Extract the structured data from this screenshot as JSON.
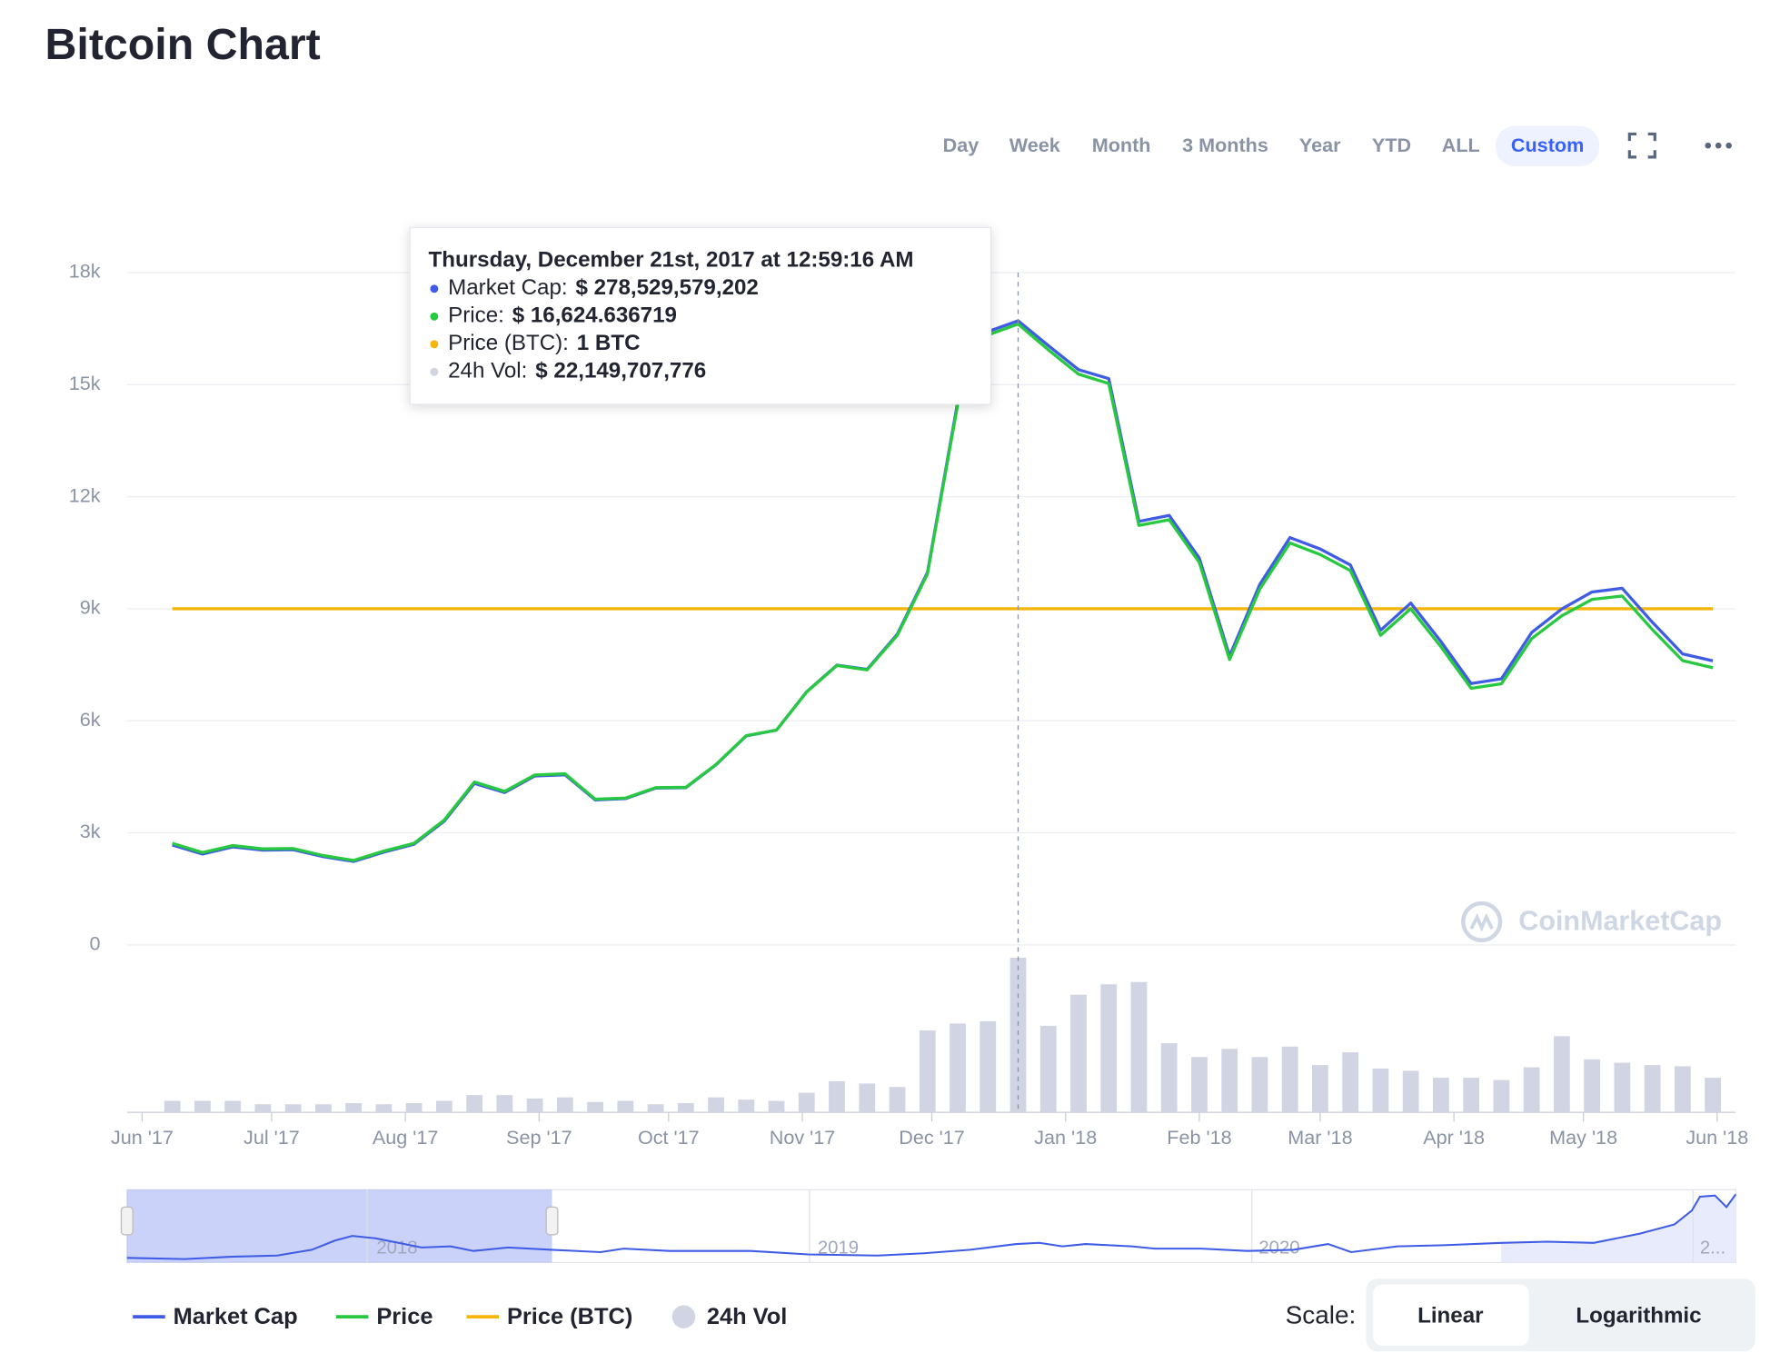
{
  "title": "Bitcoin Chart",
  "range_buttons": [
    "Day",
    "Week",
    "Month",
    "3 Months",
    "Year",
    "YTD",
    "ALL",
    "Custom"
  ],
  "active_range": "Custom",
  "tooltip": {
    "date": "Thursday, December 21st, 2017 at 12:59:16 AM",
    "items": [
      {
        "label": "Market Cap:",
        "value": "$ 278,529,579,202"
      },
      {
        "label": "Price:",
        "value": "$ 16,624.636719"
      },
      {
        "label": "Price (BTC):",
        "value": "1 BTC"
      },
      {
        "label": "24h Vol:",
        "value": "$ 22,149,707,776"
      }
    ]
  },
  "watermark": "CoinMarketCap",
  "navigator": {
    "labels": [
      "2018",
      "2019",
      "2020",
      "2..."
    ]
  },
  "scale": {
    "label": "Scale:",
    "options": [
      "Linear",
      "Logarithmic"
    ],
    "active": "Linear"
  },
  "chart_data": {
    "type": "line",
    "x": [
      7,
      14,
      21,
      28,
      35,
      42,
      49,
      56,
      63,
      70,
      77,
      84,
      91,
      98,
      105,
      112,
      119,
      126,
      133,
      140,
      147,
      154,
      161,
      168,
      175,
      182,
      189,
      196,
      203,
      210,
      217,
      224,
      231,
      238,
      245,
      252,
      259,
      266,
      273,
      280,
      287,
      294,
      301,
      308,
      315,
      322,
      329,
      336,
      343,
      350,
      357,
      364
    ],
    "xlim": [
      -3.5,
      369.3
    ],
    "xticks": [
      {
        "value": 0,
        "label": "Jun '17"
      },
      {
        "value": 30,
        "label": "Jul '17"
      },
      {
        "value": 61,
        "label": "Aug '17"
      },
      {
        "value": 92,
        "label": "Sep '17"
      },
      {
        "value": 122,
        "label": "Oct '17"
      },
      {
        "value": 153,
        "label": "Nov '17"
      },
      {
        "value": 183,
        "label": "Dec '17"
      },
      {
        "value": 214,
        "label": "Jan '18"
      },
      {
        "value": 245,
        "label": "Feb '18"
      },
      {
        "value": 273,
        "label": "Mar '18"
      },
      {
        "value": 304,
        "label": "Apr '18"
      },
      {
        "value": 334,
        "label": "May '18"
      },
      {
        "value": 365,
        "label": "Jun '18"
      }
    ],
    "ylim": [
      0,
      18000
    ],
    "yticks": [
      0,
      {
        "value": 3000,
        "label": "3k"
      },
      {
        "value": 6000,
        "label": "6k"
      },
      {
        "value": 9000,
        "label": "9k"
      },
      {
        "value": 12000,
        "label": "12k"
      },
      {
        "value": 15000,
        "label": "15k"
      },
      {
        "value": 18000,
        "label": "18k"
      }
    ],
    "y2lim": [
      0,
      300000000000
    ],
    "y3lim": [
      0,
      2
    ],
    "y4lim": [
      0,
      24000000000
    ],
    "grid": true,
    "legend": "bottom-left",
    "series": [
      {
        "name": "Market Cap",
        "color": "#3f5ce6",
        "axis": "y2",
        "values": [
          44610000000,
          40540000000,
          43700000000,
          42250000000,
          42450000000,
          39360000000,
          37240000000,
          41400000000,
          44900000000,
          55180000000,
          72080000000,
          68000000000,
          75350000000,
          75900000000,
          64690000000,
          65240000000,
          69940000000,
          70160000000,
          80370000000,
          93260000000,
          95830000000,
          112920000000,
          124860000000,
          122960000000,
          138600000000,
          166160000000,
          242310000000,
          273670000000,
          278529579202,
          267400000000,
          256690000000,
          252680000000,
          188960000000,
          191630000000,
          172560000000,
          128860000000,
          160860000000,
          181760000000,
          176660000000,
          169530000000,
          140370000000,
          152510000000,
          135330000000,
          116600000000,
          118730000000,
          139390000000,
          149880000000,
          157480000000,
          159140000000,
          143920000000,
          129860000000,
          126730000000
        ]
      },
      {
        "name": "Price",
        "color": "#28c940",
        "values": [
          2720,
          2470,
          2660,
          2570,
          2580,
          2390,
          2260,
          2510,
          2720,
          3340,
          4360,
          4110,
          4550,
          4580,
          3900,
          3930,
          4210,
          4220,
          4830,
          5600,
          5750,
          6770,
          7480,
          7360,
          8290,
          9930,
          14470,
          16330,
          16624.636719,
          15930,
          15280,
          15030,
          11230,
          11380,
          10240,
          7640,
          9530,
          10760,
          10450,
          10020,
          8290,
          9000,
          7980,
          6870,
          6990,
          8200,
          8810,
          9250,
          9340,
          8440,
          7610,
          7420
        ]
      },
      {
        "name": "Price (BTC)",
        "color": "#f5b50a",
        "axis": "y3",
        "values": [
          1,
          1,
          1,
          1,
          1,
          1,
          1,
          1,
          1,
          1,
          1,
          1,
          1,
          1,
          1,
          1,
          1,
          1,
          1,
          1,
          1,
          1,
          1,
          1,
          1,
          1,
          1,
          1,
          1,
          1,
          1,
          1,
          1,
          1,
          1,
          1,
          1,
          1,
          1,
          1,
          1,
          1,
          1,
          1,
          1,
          1,
          1,
          1,
          1,
          1,
          1,
          1
        ]
      },
      {
        "name": "24h Vol",
        "color": "#d1d5e3",
        "type": "bar",
        "axis": "y4",
        "values": [
          1650000000,
          1650000000,
          1650000000,
          1160000000,
          1160000000,
          1160000000,
          1320000000,
          1160000000,
          1320000000,
          1650000000,
          2480000000,
          2480000000,
          1980000000,
          2150000000,
          1490000000,
          1650000000,
          1160000000,
          1320000000,
          2150000000,
          1820000000,
          1650000000,
          2810000000,
          4460000000,
          4130000000,
          3640000000,
          11740000000,
          12730000000,
          13060000000,
          22149707776,
          12400000000,
          16860000000,
          18350000000,
          18680000000,
          9920000000,
          7930000000,
          9090000000,
          7930000000,
          9420000000,
          6780000000,
          8600000000,
          6280000000,
          5950000000,
          4960000000,
          4960000000,
          4630000000,
          6450000000,
          10910000000,
          7600000000,
          7110000000,
          6780000000,
          6610000000,
          4960000000
        ]
      }
    ]
  }
}
